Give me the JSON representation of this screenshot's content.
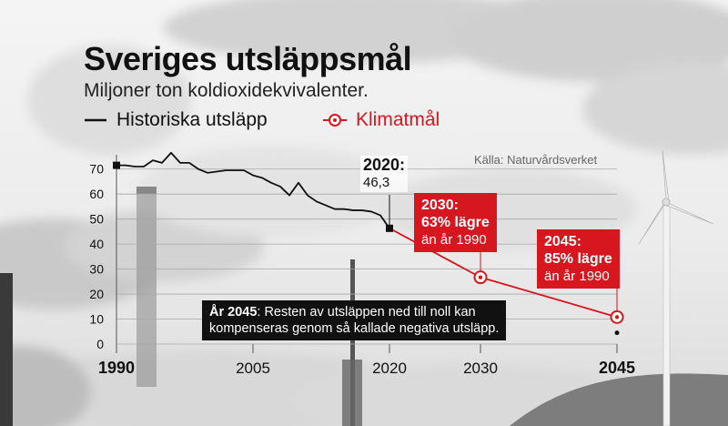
{
  "title": "Sveriges utsläppsmål",
  "subtitle": "Miljoner ton koldioxidekvivalenter.",
  "legend": {
    "historical": "Historiska utsläpp",
    "target": "Klimatmål"
  },
  "source": "Källa: Naturvårdsverket",
  "annotations": {
    "y2020": {
      "year": "2020:",
      "value": "46,3"
    },
    "y2030": {
      "heading": "2030:",
      "line1": "63% lägre",
      "line2": "än år 1990"
    },
    "y2045": {
      "heading": "2045:",
      "line1": "85% lägre",
      "line2": "än år 1990"
    },
    "negative": {
      "bold": "År 2045",
      "line1": ": Resten av utsläppen ned till noll kan",
      "line2": "kompenseras genom så kallade negativa utsläpp."
    }
  },
  "colors": {
    "historical": "#111111",
    "target": "#d7171f",
    "grid": "#a8a8a8",
    "text": "#111111"
  },
  "chart_data": {
    "type": "line",
    "title": "Sveriges utsläppsmål",
    "subtitle": "Miljoner ton koldioxidekvivalenter.",
    "ylim": [
      0,
      75
    ],
    "xlim": [
      1990,
      2045
    ],
    "yticks": [
      0,
      10,
      20,
      30,
      40,
      50,
      60,
      70
    ],
    "xticks": [
      1990,
      2005,
      2020,
      2030,
      2045
    ],
    "xticks_bold": [
      1990,
      2045
    ],
    "grid": "horizontal",
    "legend_position": "top",
    "series": [
      {
        "name": "Historiska utsläpp",
        "x": [
          1990,
          1991,
          1992,
          1993,
          1994,
          1995,
          1996,
          1997,
          1998,
          1999,
          2000,
          2001,
          2002,
          2003,
          2004,
          2005,
          2006,
          2007,
          2008,
          2009,
          2010,
          2011,
          2012,
          2013,
          2014,
          2015,
          2016,
          2017,
          2018,
          2019,
          2020
        ],
        "y": [
          71.5,
          71.5,
          71.0,
          71.0,
          73.5,
          72.5,
          76.5,
          72.5,
          72.5,
          70.0,
          68.5,
          69.0,
          69.5,
          69.5,
          69.5,
          67.5,
          66.5,
          64.5,
          63.0,
          59.5,
          64.5,
          59.5,
          57.0,
          55.5,
          54.0,
          54.0,
          53.5,
          53.5,
          53.0,
          51.5,
          46.3
        ]
      },
      {
        "name": "Klimatmål",
        "x": [
          2020,
          2030,
          2045
        ],
        "y": [
          46.3,
          26.7,
          10.8
        ]
      },
      {
        "name": "",
        "x": [
          2045
        ],
        "y": [
          4.5
        ]
      }
    ]
  }
}
